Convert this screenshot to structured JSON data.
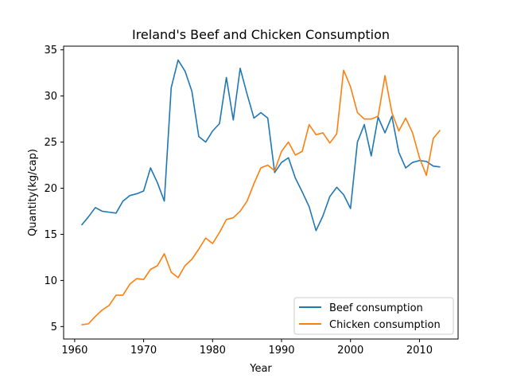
{
  "chart_data": {
    "type": "line",
    "title": "Ireland's Beef and Chicken Consumption",
    "xlabel": "Year",
    "ylabel": "Quantity(kg/cap)",
    "xlim": [
      1958.4,
      2015.6
    ],
    "ylim": [
      3.65,
      35.4
    ],
    "xticks": [
      1960,
      1970,
      1980,
      1990,
      2000,
      2010
    ],
    "yticks": [
      5,
      10,
      15,
      20,
      25,
      30,
      35
    ],
    "grid": false,
    "legend_position": "lower right",
    "x": [
      1961,
      1962,
      1963,
      1964,
      1965,
      1966,
      1967,
      1968,
      1969,
      1970,
      1971,
      1972,
      1973,
      1974,
      1975,
      1976,
      1977,
      1978,
      1979,
      1980,
      1981,
      1982,
      1983,
      1984,
      1985,
      1986,
      1987,
      1988,
      1989,
      1990,
      1991,
      1992,
      1993,
      1994,
      1995,
      1996,
      1997,
      1998,
      1999,
      2000,
      2001,
      2002,
      2003,
      2004,
      2005,
      2006,
      2007,
      2008,
      2009,
      2010,
      2011,
      2012,
      2013
    ],
    "series": [
      {
        "name": "Beef consumption",
        "color": "#1f77b4",
        "values": [
          16.0,
          16.9,
          17.9,
          17.5,
          17.4,
          17.3,
          18.6,
          19.2,
          19.4,
          19.7,
          22.2,
          20.6,
          18.6,
          30.9,
          33.9,
          32.7,
          30.5,
          25.6,
          25.0,
          26.2,
          27.0,
          32.0,
          27.4,
          33.0,
          30.2,
          27.6,
          28.2,
          27.6,
          21.7,
          22.8,
          23.3,
          21.1,
          19.6,
          18.0,
          15.4,
          17.0,
          19.1,
          20.1,
          19.3,
          17.8,
          25.0,
          26.9,
          23.5,
          27.7,
          26.0,
          27.8,
          23.9,
          22.2,
          22.8,
          23.0,
          22.9,
          22.4,
          22.3
        ]
      },
      {
        "name": "Chicken consumption",
        "color": "#ff7f0e",
        "values": [
          5.2,
          5.3,
          6.1,
          6.8,
          7.3,
          8.4,
          8.4,
          9.6,
          10.2,
          10.1,
          11.2,
          11.6,
          12.9,
          10.9,
          10.3,
          11.6,
          12.3,
          13.4,
          14.6,
          14.0,
          15.2,
          16.6,
          16.8,
          17.5,
          18.6,
          20.5,
          22.2,
          22.5,
          21.9,
          24.0,
          25.0,
          23.6,
          24.0,
          26.9,
          25.8,
          26.0,
          24.9,
          25.9,
          32.8,
          31.0,
          28.2,
          27.5,
          27.5,
          27.8,
          32.2,
          28.2,
          26.2,
          27.6,
          26.0,
          23.3,
          21.4,
          25.4,
          26.3
        ]
      }
    ]
  }
}
